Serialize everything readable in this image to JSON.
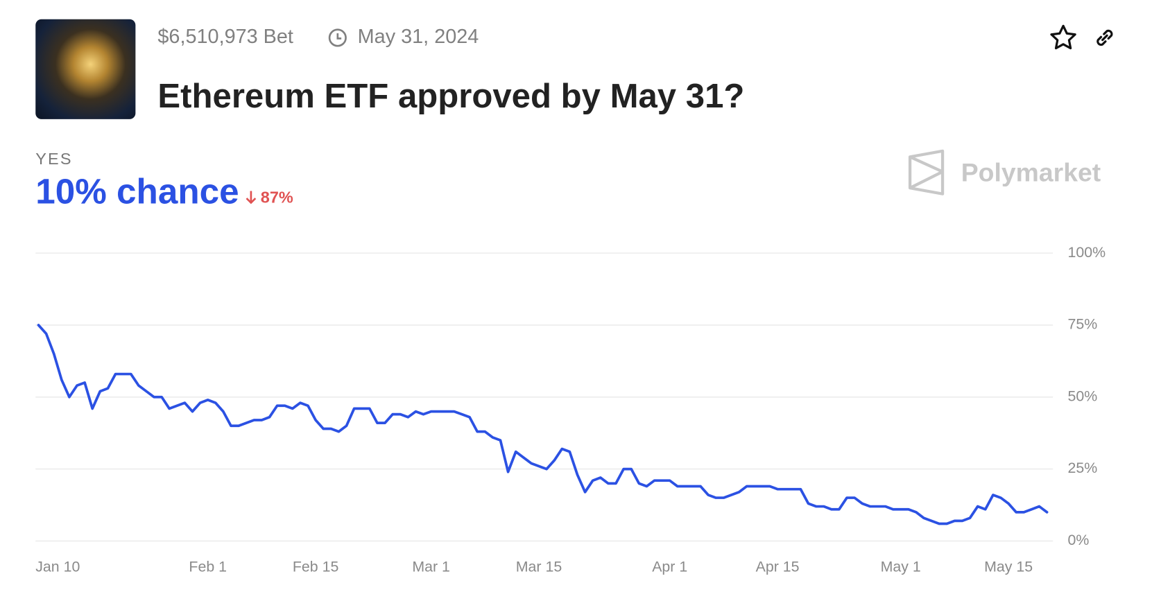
{
  "header": {
    "volume": "$6,510,973 Bet",
    "end_date": "May 31, 2024",
    "title": "Ethereum ETF approved by May 31?"
  },
  "outcome": {
    "label": "YES",
    "chance": "10% chance",
    "change": "87%"
  },
  "brand": "Polymarket",
  "chart_data": {
    "type": "line",
    "categories": [
      "Jan 10",
      null,
      null,
      null,
      null,
      null,
      null,
      null,
      null,
      null,
      null,
      null,
      null,
      null,
      null,
      null,
      null,
      null,
      null,
      null,
      null,
      null,
      "Feb 1",
      null,
      null,
      null,
      null,
      null,
      null,
      null,
      null,
      null,
      null,
      null,
      null,
      null,
      "Feb 15",
      null,
      null,
      null,
      null,
      null,
      null,
      null,
      null,
      null,
      null,
      null,
      null,
      null,
      null,
      "Mar 1",
      null,
      null,
      null,
      null,
      null,
      null,
      null,
      null,
      null,
      null,
      null,
      null,
      null,
      "Mar 15",
      null,
      null,
      null,
      null,
      null,
      null,
      null,
      null,
      null,
      null,
      null,
      null,
      null,
      null,
      null,
      null,
      "Apr 1",
      null,
      null,
      null,
      null,
      null,
      null,
      null,
      null,
      null,
      null,
      null,
      null,
      null,
      "Apr 15",
      null,
      null,
      null,
      null,
      null,
      null,
      null,
      null,
      null,
      null,
      null,
      null,
      null,
      null,
      null,
      "May 1",
      null,
      null,
      null,
      null,
      null,
      null,
      null,
      null,
      null,
      null,
      null,
      null,
      null,
      "May 15",
      null,
      null,
      null,
      null,
      null
    ],
    "series": [
      {
        "name": "YES",
        "color": "#2b51e3",
        "values": [
          75,
          72,
          65,
          56,
          50,
          54,
          55,
          46,
          52,
          53,
          58,
          58,
          58,
          54,
          52,
          50,
          50,
          46,
          47,
          48,
          45,
          48,
          49,
          48,
          45,
          40,
          40,
          41,
          42,
          42,
          43,
          47,
          47,
          46,
          48,
          47,
          42,
          39,
          39,
          38,
          40,
          46,
          46,
          46,
          41,
          41,
          44,
          44,
          43,
          45,
          44,
          45,
          45,
          45,
          45,
          44,
          43,
          38,
          38,
          36,
          35,
          24,
          31,
          29,
          27,
          26,
          25,
          28,
          32,
          31,
          23,
          17,
          21,
          22,
          20,
          20,
          25,
          25,
          20,
          19,
          21,
          21,
          21,
          19,
          19,
          19,
          19,
          16,
          15,
          15,
          16,
          17,
          19,
          19,
          19,
          19,
          18,
          18,
          18,
          18,
          13,
          12,
          12,
          11,
          11,
          15,
          15,
          13,
          12,
          12,
          12,
          11,
          11,
          11,
          10,
          8,
          7,
          6,
          6,
          7,
          7,
          8,
          12,
          11,
          16,
          15,
          13,
          10,
          10,
          11,
          12,
          10
        ]
      }
    ],
    "ylim": [
      0,
      100
    ],
    "yticks": [
      {
        "value": 0,
        "label": "0%"
      },
      {
        "value": 25,
        "label": "25%"
      },
      {
        "value": 50,
        "label": "50%"
      },
      {
        "value": 75,
        "label": "75%"
      },
      {
        "value": 100,
        "label": "100%"
      }
    ],
    "grid": true
  }
}
